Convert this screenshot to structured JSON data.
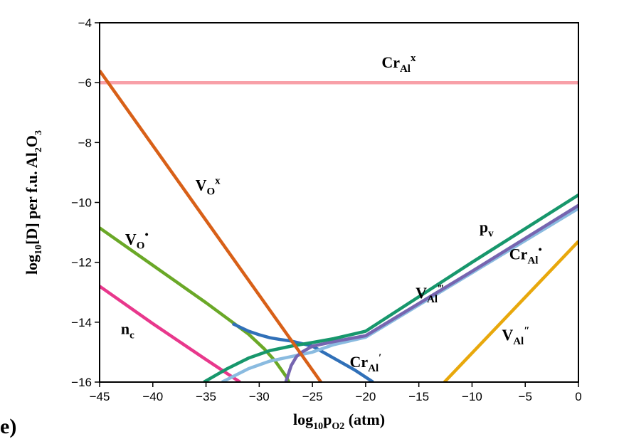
{
  "panel_label": "e)",
  "chart_data": {
    "type": "line",
    "title": "",
    "xlabel": {
      "main": "log",
      "sub1": "10",
      "mid": "p",
      "sub2": "O2",
      "tail": " (atm)"
    },
    "ylabel": {
      "main": "log",
      "sub1": "10",
      "mid": "[D] per f.u. Al",
      "sub2": "2",
      "mid2": "O",
      "sub3": "3"
    },
    "xlim": [
      -45,
      0
    ],
    "ylim": [
      -16,
      -4
    ],
    "xticks": [
      -45,
      -40,
      -35,
      -30,
      -25,
      -20,
      -15,
      -10,
      -5,
      0
    ],
    "yticks": [
      -16,
      -14,
      -12,
      -10,
      -8,
      -6,
      -4
    ],
    "xtick_labels": [
      "−45",
      "−40",
      "−35",
      "−30",
      "−25",
      "−20",
      "−15",
      "−10",
      "−5",
      "0"
    ],
    "ytick_labels": [
      "−16",
      "−14",
      "−12",
      "−10",
      "−8",
      "−6",
      "−4"
    ],
    "series": [
      {
        "key": "cr_al_x",
        "color": "#f8a0a8",
        "label": {
          "base": "Cr",
          "sub": "Al",
          "sup": "x"
        },
        "label_pos": [
          -18.5,
          -5.5
        ],
        "x": [
          -45,
          0
        ],
        "y": [
          -6.0,
          -6.0
        ]
      },
      {
        "key": "v_o_x",
        "color": "#d86018",
        "label": {
          "base": "V",
          "sub": "O",
          "sup": "x"
        },
        "label_pos": [
          -36,
          -9.6
        ],
        "x": [
          -45,
          -24.2
        ],
        "y": [
          -5.6,
          -16.0
        ]
      },
      {
        "key": "v_o_dot",
        "color": "#6aa827",
        "label": {
          "base": "V",
          "sub": "O",
          "sup": "•"
        },
        "label_pos": [
          -42.6,
          -11.4
        ],
        "x": [
          -45,
          -40,
          -35,
          -31,
          -29.5,
          -28.5,
          -27.5,
          -27.2
        ],
        "y": [
          -10.85,
          -12.1,
          -13.35,
          -14.4,
          -14.9,
          -15.3,
          -15.8,
          -16.0
        ]
      },
      {
        "key": "n_c",
        "color": "#e8388c",
        "label": {
          "base": "n",
          "sub": "c",
          "sup": ""
        },
        "label_pos": [
          -43,
          -14.4
        ],
        "x": [
          -45,
          -40,
          -35,
          -31.8
        ],
        "y": [
          -12.8,
          -14.05,
          -15.25,
          -16.0
        ]
      },
      {
        "key": "cr_al_prime",
        "color": "#3070b8",
        "label": {
          "base": "Cr",
          "sub": "Al",
          "sup": "′"
        },
        "label_pos": [
          -21.5,
          -15.5
        ],
        "x": [
          -32.5,
          -31,
          -30,
          -29,
          -28,
          -27,
          -25,
          -23,
          -21,
          -19.3
        ],
        "y": [
          -14.05,
          -14.3,
          -14.42,
          -14.52,
          -14.58,
          -14.63,
          -14.8,
          -15.2,
          -15.6,
          -16.0
        ]
      },
      {
        "key": "p_v",
        "color": "#17976c",
        "label": {
          "base": "p",
          "sub": "v",
          "sup": ""
        },
        "label_pos": [
          -9.3,
          -11.0
        ],
        "x": [
          -35.2,
          -33,
          -31,
          -29,
          -27,
          -25,
          -23,
          -20,
          -10,
          0
        ],
        "y": [
          -16.0,
          -15.55,
          -15.2,
          -14.95,
          -14.8,
          -14.68,
          -14.55,
          -14.3,
          -12.0,
          -9.75
        ]
      },
      {
        "key": "cr_al_dot",
        "color": "#8abbe0",
        "label": {
          "base": "Cr",
          "sub": "Al",
          "sup": "•"
        },
        "label_pos": [
          -6.5,
          -11.9
        ],
        "x": [
          -33.5,
          -31,
          -29,
          -27,
          -25,
          -23,
          -20,
          -10,
          0
        ],
        "y": [
          -16.0,
          -15.55,
          -15.3,
          -15.15,
          -15.0,
          -14.75,
          -14.5,
          -12.35,
          -10.2
        ]
      },
      {
        "key": "v_al_3prime",
        "color": "#7665b0",
        "label": {
          "base": "V",
          "sub": "Al",
          "sup": "‴"
        },
        "label_pos": [
          -15.3,
          -13.2
        ],
        "x": [
          -27.5,
          -27,
          -26.5,
          -26,
          -25,
          -23,
          -20,
          -10,
          0
        ],
        "y": [
          -16.0,
          -15.45,
          -15.15,
          -15.0,
          -14.8,
          -14.65,
          -14.45,
          -12.3,
          -10.1
        ]
      },
      {
        "key": "v_al_2prime",
        "color": "#e8a80c",
        "label": {
          "base": "V",
          "sub": "Al",
          "sup": "″"
        },
        "label_pos": [
          -7.2,
          -14.6
        ],
        "x": [
          -12.6,
          0
        ],
        "y": [
          -16.0,
          -11.3
        ]
      }
    ]
  }
}
